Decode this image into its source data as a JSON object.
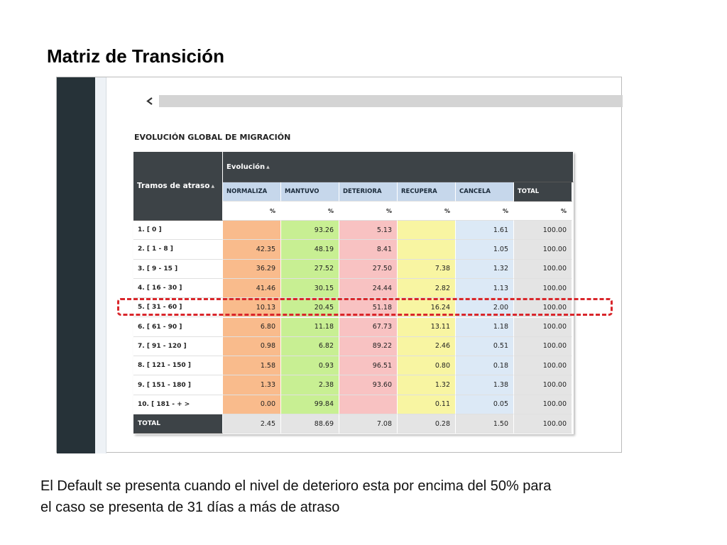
{
  "title": "Matriz de Transición",
  "panel": {
    "heading": "EVOLUCIÓN GLOBAL DE MIGRACIÓN",
    "table": {
      "row_header": "Tramos de atraso",
      "group_header": "Evolución",
      "columns": [
        "NORMALIZA",
        "MANTUVO",
        "DETERIORA",
        "RECUPERA",
        "CANCELA"
      ],
      "total_header": "TOTAL",
      "units": [
        "%",
        "%",
        "%",
        "%",
        "%",
        "%"
      ],
      "rows": [
        {
          "label": "1. [ 0 ]",
          "cells": [
            null,
            "93.26",
            "5.13",
            null,
            "1.61",
            "100.00"
          ]
        },
        {
          "label": "2. [ 1 - 8 ]",
          "cells": [
            "42.35",
            "48.19",
            "8.41",
            null,
            "1.05",
            "100.00"
          ]
        },
        {
          "label": "3. [ 9 - 15 ]",
          "cells": [
            "36.29",
            "27.52",
            "27.50",
            "7.38",
            "1.32",
            "100.00"
          ]
        },
        {
          "label": "4. [ 16 - 30 ]",
          "cells": [
            "41.46",
            "30.15",
            "24.44",
            "2.82",
            "1.13",
            "100.00"
          ]
        },
        {
          "label": "5. [ 31 - 60 ]",
          "cells": [
            "10.13",
            "20.45",
            "51.18",
            "16.24",
            "2.00",
            "100.00"
          ]
        },
        {
          "label": "6. [ 61 - 90 ]",
          "cells": [
            "6.80",
            "11.18",
            "67.73",
            "13.11",
            "1.18",
            "100.00"
          ]
        },
        {
          "label": "7. [ 91 - 120 ]",
          "cells": [
            "0.98",
            "6.82",
            "89.22",
            "2.46",
            "0.51",
            "100.00"
          ]
        },
        {
          "label": "8. [ 121 - 150 ]",
          "cells": [
            "1.58",
            "0.93",
            "96.51",
            "0.80",
            "0.18",
            "100.00"
          ]
        },
        {
          "label": "9. [ 151 - 180 ]",
          "cells": [
            "1.33",
            "2.38",
            "93.60",
            "1.32",
            "1.38",
            "100.00"
          ]
        },
        {
          "label": "10. [ 181 - + >",
          "cells": [
            "0.00",
            "99.84",
            null,
            "0.11",
            "0.05",
            "100.00"
          ]
        }
      ],
      "total_row": {
        "label": "TOTAL",
        "cells": [
          "2.45",
          "88.69",
          "7.08",
          "0.28",
          "1.50",
          "100.00"
        ]
      }
    }
  },
  "note": [
    "El Default se presenta cuando el nivel de deterioro esta por encima del 50% para",
    "el caso se presenta de 31 días a más de atraso"
  ]
}
